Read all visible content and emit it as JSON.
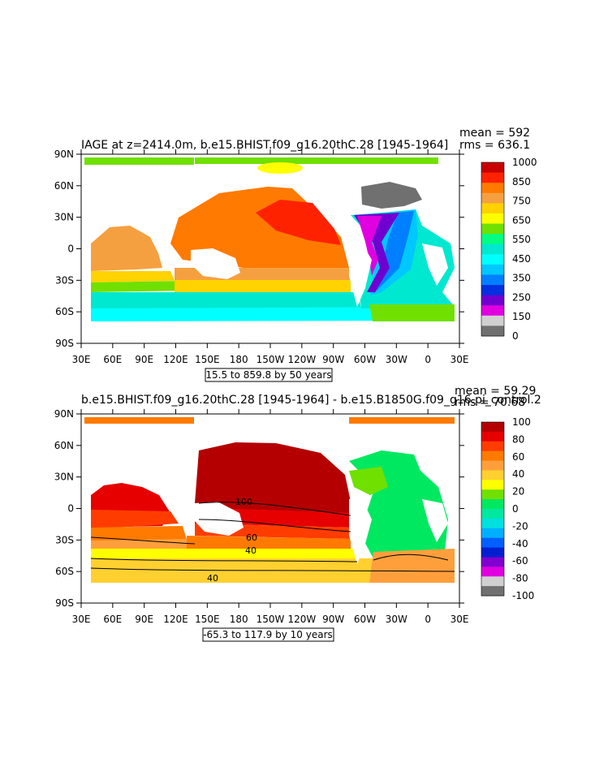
{
  "panels": [
    {
      "title": "IAGE at z=2414.0m, b.e15.BHIST.f09_g16.20thC.28 [1945-1964]",
      "stats": {
        "mean_label": "mean = 592",
        "rms_label": "rms = 636.1"
      },
      "range_label": "15.5 to 859.8 by 50 years",
      "colorbar": {
        "labels": [
          "1000",
          "850",
          "750",
          "650",
          "550",
          "450",
          "350",
          "250",
          "150",
          "0"
        ],
        "colors": [
          "#c80000",
          "#ff2200",
          "#ff7a00",
          "#f5a040",
          "#ffd200",
          "#ffff00",
          "#70e000",
          "#00ff80",
          "#00e8d0",
          "#00ffff",
          "#00c8ff",
          "#0080ff",
          "#0030e0",
          "#7000d0",
          "#e000e0",
          "#d0d0d0",
          "#707070"
        ]
      },
      "contour_labels": []
    },
    {
      "title": "b.e15.BHIST.f09_g16.20thC.28 [1945-1964] - b.e15.B1850G.f09_g16.pi_control.2",
      "stats": {
        "mean_label": "mean = 59.29",
        "rms_label": "rms = 70.68"
      },
      "range_label": "-65.3 to 117.9 by 10 years",
      "colorbar": {
        "labels": [
          "100",
          "80",
          "60",
          "40",
          "20",
          "0",
          "-20",
          "-40",
          "-60",
          "-80",
          "-100"
        ],
        "colors": [
          "#b40000",
          "#e60000",
          "#ff3c00",
          "#ff7a00",
          "#ff9f3c",
          "#ffd030",
          "#ffff00",
          "#70e000",
          "#00e860",
          "#00e8a0",
          "#00e0e0",
          "#00b0ff",
          "#0060ff",
          "#0020d0",
          "#8000d0",
          "#e000e0",
          "#d0d0d0",
          "#707070"
        ]
      },
      "contour_labels": [
        "100",
        "60",
        "40",
        "40"
      ]
    }
  ],
  "axes": {
    "x_ticks": [
      "30E",
      "60E",
      "90E",
      "120E",
      "150E",
      "180",
      "150W",
      "120W",
      "90W",
      "60W",
      "30W",
      "0",
      "30E"
    ],
    "y_ticks": [
      "90N",
      "60N",
      "30N",
      "0",
      "30S",
      "60S",
      "90S"
    ]
  },
  "chart_data": [
    {
      "type": "heatmap",
      "title": "IAGE at z=2414.0m, b.e15.BHIST.f09_g16.20thC.28 [1945-1964]",
      "variable": "IAGE",
      "units": "years",
      "depth_m": 2414.0,
      "mean": 592,
      "rms": 636.1,
      "contour_min": 15.5,
      "contour_max": 859.8,
      "contour_interval": 50,
      "colorbar_levels": [
        0,
        150,
        250,
        350,
        450,
        550,
        650,
        750,
        850,
        1000
      ],
      "xlim": [
        30,
        390
      ],
      "ylim": [
        -90,
        90
      ],
      "xlabel": "",
      "ylabel": ""
    },
    {
      "type": "heatmap",
      "title": "b.e15.BHIST.f09_g16.20thC.28 [1945-1964] - b.e15.B1850G.f09_g16.pi_control.2",
      "variable": "IAGE difference",
      "units": "years",
      "mean": 59.29,
      "rms": 70.68,
      "contour_min": -65.3,
      "contour_max": 117.9,
      "contour_interval": 10,
      "colorbar_levels": [
        -100,
        -80,
        -60,
        -40,
        -20,
        0,
        20,
        40,
        60,
        80,
        100
      ],
      "xlim": [
        30,
        390
      ],
      "ylim": [
        -90,
        90
      ],
      "xlabel": "",
      "ylabel": ""
    }
  ]
}
